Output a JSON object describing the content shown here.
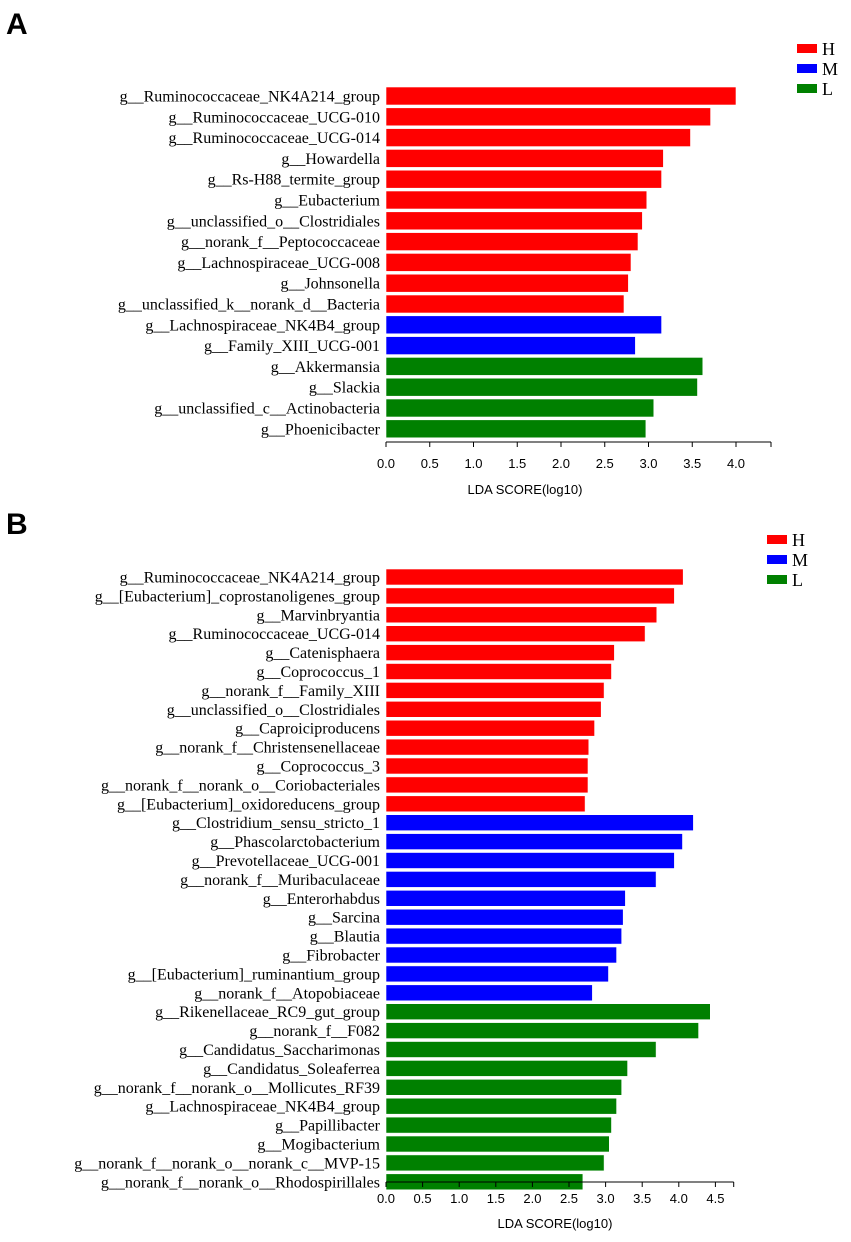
{
  "colors": {
    "H": "#ff0000",
    "M": "#0000ff",
    "L": "#008000"
  },
  "chart_data": [
    {
      "type": "bar",
      "orientation": "horizontal",
      "panel": "A",
      "title": "",
      "xlabel": "LDA SCORE(log10)",
      "ylabel": "",
      "xlim": [
        0,
        4.4
      ],
      "xticks": [
        "0.0",
        "0.5",
        "1.0",
        "1.5",
        "2.0",
        "2.5",
        "3.0",
        "3.5",
        "4.0"
      ],
      "legend": {
        "placement": "top-right",
        "entries": [
          "H",
          "M",
          "L"
        ]
      },
      "categories": [
        "g__Ruminococcaceae_NK4A214_group",
        "g__Ruminococcaceae_UCG-010",
        "g__Ruminococcaceae_UCG-014",
        "g__Howardella",
        "g__Rs-H88_termite_group",
        "g__Eubacterium",
        "g__unclassified_o__Clostridiales",
        "g__norank_f__Peptococcaceae",
        "g__Lachnospiraceae_UCG-008",
        "g__Johnsonella",
        "g__unclassified_k__norank_d__Bacteria",
        "g__Lachnospiraceae_NK4B4_group",
        "g__Family_XIII_UCG-001",
        "g__Akkermansia",
        "g__Slackia",
        "g__unclassified_c__Actinobacteria",
        "g__Phoenicibacter"
      ],
      "values": [
        4.0,
        3.71,
        3.48,
        3.17,
        3.15,
        2.98,
        2.93,
        2.88,
        2.8,
        2.77,
        2.72,
        3.15,
        2.85,
        3.62,
        3.56,
        3.06,
        2.97
      ],
      "groups": [
        "H",
        "H",
        "H",
        "H",
        "H",
        "H",
        "H",
        "H",
        "H",
        "H",
        "H",
        "M",
        "M",
        "L",
        "L",
        "L",
        "L"
      ]
    },
    {
      "type": "bar",
      "orientation": "horizontal",
      "panel": "B",
      "title": "",
      "xlabel": "LDA SCORE(log10)",
      "ylabel": "",
      "xlim": [
        0,
        4.75
      ],
      "xticks": [
        "0.0",
        "0.5",
        "1.0",
        "1.5",
        "2.0",
        "2.5",
        "3.0",
        "3.5",
        "4.0",
        "4.5"
      ],
      "legend": {
        "placement": "top-right",
        "entries": [
          "H",
          "M",
          "L"
        ]
      },
      "categories": [
        "g__Ruminococcaceae_NK4A214_group",
        "g__[Eubacterium]_coprostanoligenes_group",
        "g__Marvinbryantia",
        "g__Ruminococcaceae_UCG-014",
        "g__Catenisphaera",
        "g__Coprococcus_1",
        "g__norank_f__Family_XIII",
        "g__unclassified_o__Clostridiales",
        "g__Caproiciproducens",
        "g__norank_f__Christensenellaceae",
        "g__Coprococcus_3",
        "g__norank_f__norank_o__Coriobacteriales",
        "g__[Eubacterium]_oxidoreducens_group",
        "g__Clostridium_sensu_stricto_1",
        "g__Phascolarctobacterium",
        "g__Prevotellaceae_UCG-001",
        "g__norank_f__Muribaculaceae",
        "g__Enterorhabdus",
        "g__Sarcina",
        "g__Blautia",
        "g__Fibrobacter",
        "g__[Eubacterium]_ruminantium_group",
        "g__norank_f__Atopobiaceae",
        "g__Rikenellaceae_RC9_gut_group",
        "g__norank_f__F082",
        "g__Candidatus_Saccharimonas",
        "g__Candidatus_Soleaferrea",
        "g__norank_f__norank_o__Mollicutes_RF39",
        "g__Lachnospiraceae_NK4B4_group",
        "g__Papillibacter",
        "g__Mogibacterium",
        "g__norank_f__norank_o__norank_c__MVP-15",
        "g__norank_f__norank_o__Rhodospirillales"
      ],
      "values": [
        4.06,
        3.94,
        3.7,
        3.54,
        3.12,
        3.08,
        2.98,
        2.94,
        2.85,
        2.77,
        2.76,
        2.76,
        2.72,
        4.2,
        4.05,
        3.94,
        3.69,
        3.27,
        3.24,
        3.22,
        3.15,
        3.04,
        2.82,
        4.43,
        4.27,
        3.69,
        3.3,
        3.22,
        3.15,
        3.08,
        3.05,
        2.98,
        2.69
      ],
      "groups": [
        "H",
        "H",
        "H",
        "H",
        "H",
        "H",
        "H",
        "H",
        "H",
        "H",
        "H",
        "H",
        "H",
        "M",
        "M",
        "M",
        "M",
        "M",
        "M",
        "M",
        "M",
        "M",
        "M",
        "L",
        "L",
        "L",
        "L",
        "L",
        "L",
        "L",
        "L",
        "L",
        "L"
      ]
    }
  ]
}
